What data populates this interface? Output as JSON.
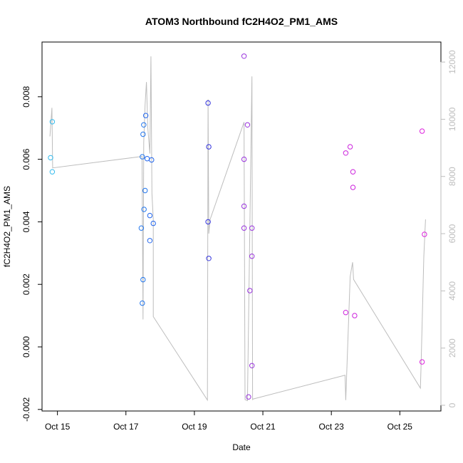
{
  "chart_data": {
    "type": "scatter",
    "title": "ATOM3 Northbound fC2H4O2_PM1_AMS",
    "xlabel": "Date",
    "ylabel": "fC2H4O2_PM1_AMS",
    "xlim": [
      14.55,
      26.2
    ],
    "ylim": [
      -0.00205,
      0.00975
    ],
    "x_ticks": [
      15,
      17,
      19,
      21,
      23,
      25
    ],
    "x_tick_labels": [
      "Oct 15",
      "Oct 17",
      "Oct 19",
      "Oct 21",
      "Oct 23",
      "Oct 25"
    ],
    "y_ticks": [
      -0.002,
      0.0,
      0.002,
      0.004,
      0.006,
      0.008
    ],
    "y_tick_labels": [
      "-0.002",
      "0.000",
      "0.002",
      "0.004",
      "0.006",
      "0.008"
    ],
    "y2lim": [
      -200,
      12700
    ],
    "y2_ticks": [
      0,
      2000,
      4000,
      6000,
      8000,
      10000,
      12000
    ],
    "y2_tick_labels": [
      "0",
      "2000",
      "4000",
      "6000",
      "8000",
      "10000",
      "12000"
    ],
    "grid": false,
    "colors": {
      "start": "#33bbee",
      "mid": "#2233dd",
      "end": "#dd22dd",
      "secondary": "#bdbdbd"
    },
    "points": [
      {
        "x": 14.8,
        "y": 0.00605,
        "c": "#33bbee"
      },
      {
        "x": 14.85,
        "y": 0.0072,
        "c": "#33bbee"
      },
      {
        "x": 14.85,
        "y": 0.0056,
        "c": "#33bbee"
      },
      {
        "x": 17.45,
        "y": 0.0038,
        "c": "#2277ee"
      },
      {
        "x": 17.48,
        "y": 0.00608,
        "c": "#2277ee"
      },
      {
        "x": 17.5,
        "y": 0.0068,
        "c": "#2277ee"
      },
      {
        "x": 17.5,
        "y": 0.00215,
        "c": "#2277ee"
      },
      {
        "x": 17.48,
        "y": 0.0014,
        "c": "#2277ee"
      },
      {
        "x": 17.52,
        "y": 0.0071,
        "c": "#2277ee"
      },
      {
        "x": 17.53,
        "y": 0.0044,
        "c": "#2277ee"
      },
      {
        "x": 17.56,
        "y": 0.005,
        "c": "#2277ee"
      },
      {
        "x": 17.58,
        "y": 0.0074,
        "c": "#2266ee"
      },
      {
        "x": 17.62,
        "y": 0.00602,
        "c": "#2266ee"
      },
      {
        "x": 17.7,
        "y": 0.0042,
        "c": "#2266ee"
      },
      {
        "x": 17.7,
        "y": 0.0034,
        "c": "#2266ee"
      },
      {
        "x": 17.75,
        "y": 0.00598,
        "c": "#2266ee"
      },
      {
        "x": 17.8,
        "y": 0.00395,
        "c": "#2266ee"
      },
      {
        "x": 19.4,
        "y": 0.0078,
        "c": "#3333dd"
      },
      {
        "x": 19.42,
        "y": 0.0064,
        "c": "#3333dd"
      },
      {
        "x": 19.4,
        "y": 0.004,
        "c": "#3333dd"
      },
      {
        "x": 19.42,
        "y": 0.00283,
        "c": "#3333dd"
      },
      {
        "x": 20.45,
        "y": 0.0093,
        "c": "#9933dd"
      },
      {
        "x": 20.55,
        "y": 0.0071,
        "c": "#9933dd"
      },
      {
        "x": 20.45,
        "y": 0.006,
        "c": "#9933dd"
      },
      {
        "x": 20.45,
        "y": 0.0045,
        "c": "#9933dd"
      },
      {
        "x": 20.45,
        "y": 0.0038,
        "c": "#9933dd"
      },
      {
        "x": 20.68,
        "y": 0.0038,
        "c": "#9933dd"
      },
      {
        "x": 20.68,
        "y": 0.0029,
        "c": "#9933dd"
      },
      {
        "x": 20.62,
        "y": 0.0018,
        "c": "#9933dd"
      },
      {
        "x": 20.68,
        "y": -0.0006,
        "c": "#9933dd"
      },
      {
        "x": 20.58,
        "y": -0.0016,
        "c": "#9933dd"
      },
      {
        "x": 23.42,
        "y": 0.0062,
        "c": "#cc22dd"
      },
      {
        "x": 23.55,
        "y": 0.0064,
        "c": "#cc22dd"
      },
      {
        "x": 23.63,
        "y": 0.0056,
        "c": "#cc22dd"
      },
      {
        "x": 23.63,
        "y": 0.0051,
        "c": "#cc22dd"
      },
      {
        "x": 23.42,
        "y": 0.0011,
        "c": "#cc22dd"
      },
      {
        "x": 23.68,
        "y": 0.001,
        "c": "#cc22dd"
      },
      {
        "x": 25.65,
        "y": 0.0069,
        "c": "#dd22dd"
      },
      {
        "x": 25.72,
        "y": 0.0036,
        "c": "#dd22dd"
      },
      {
        "x": 25.65,
        "y": -0.00048,
        "c": "#dd22dd"
      }
    ],
    "secondary_line": {
      "x": [
        14.78,
        14.84,
        14.86,
        17.47,
        17.5,
        17.52,
        17.56,
        17.6,
        17.64,
        17.7,
        17.73,
        17.76,
        17.8,
        17.8,
        19.38,
        19.4,
        19.42,
        19.46,
        20.45,
        20.48,
        20.55,
        20.68,
        20.7,
        20.72,
        23.4,
        23.42,
        23.55,
        23.62,
        23.65,
        25.6,
        25.62,
        25.7,
        25.75
      ],
      "y": [
        9400,
        10400,
        8300,
        8700,
        3000,
        9200,
        10500,
        11300,
        9700,
        8800,
        12200,
        7400,
        6500,
        3100,
        180,
        10700,
        6000,
        6500,
        9900,
        200,
        160,
        11500,
        200,
        220,
        1050,
        180,
        4500,
        5000,
        4400,
        600,
        1350,
        5200,
        6500
      ]
    }
  }
}
